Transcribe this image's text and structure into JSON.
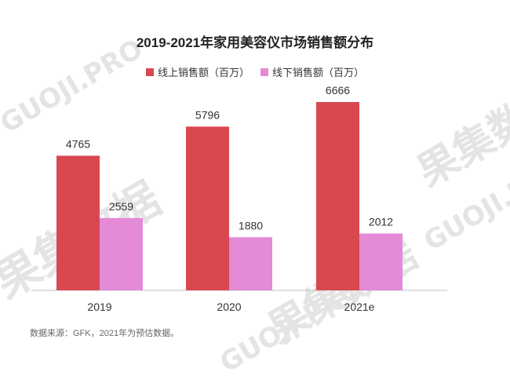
{
  "watermark": {
    "brand_cn": "果集数据",
    "brand_en": "GUOJI.PRO"
  },
  "chart_data": {
    "type": "bar",
    "title": "2019-2021年家用美容仪市场销售额分布",
    "categories": [
      "2019",
      "2020",
      "2021e"
    ],
    "series": [
      {
        "name": "线上销售额（百万）",
        "values": [
          4765,
          5796,
          6666
        ],
        "color": "#d9474f"
      },
      {
        "name": "线下销售额（百万）",
        "values": [
          2559,
          1880,
          2012
        ],
        "color": "#e48ad6"
      }
    ],
    "ylim": [
      0,
      7500
    ],
    "grid": false,
    "legend_position": "top-center",
    "xlabel": "",
    "ylabel": ""
  },
  "source_note": "数据来源：GFK，2021年为预估数据。"
}
